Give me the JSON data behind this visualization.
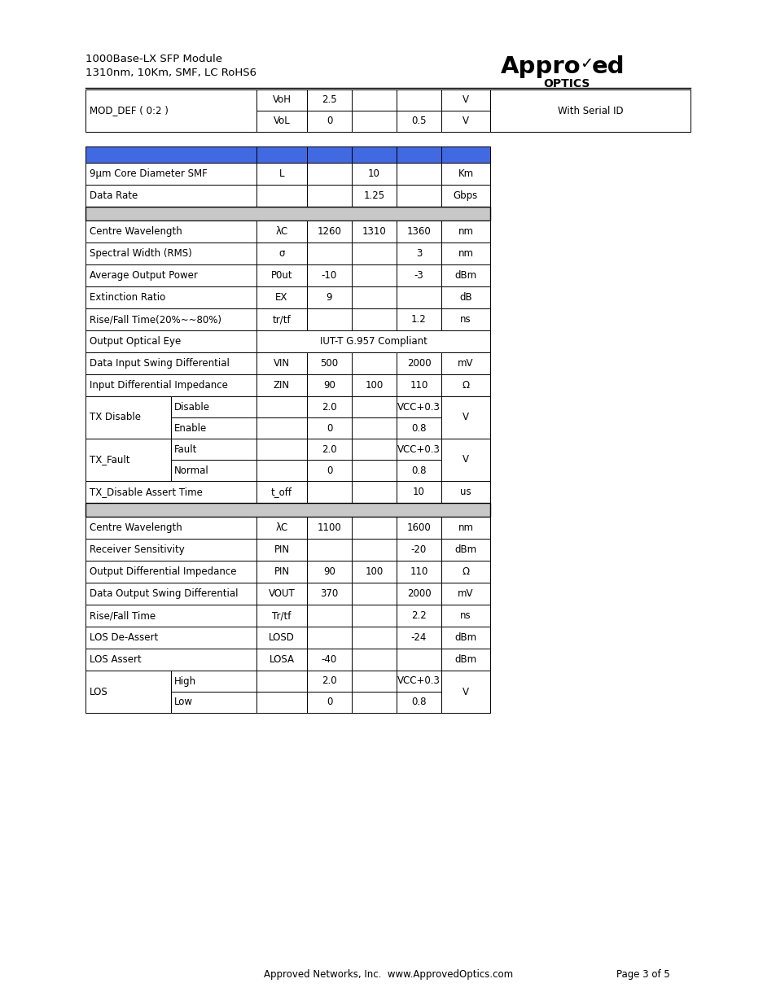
{
  "title_line1": "1000Base-LX SFP Module",
  "title_line2": "1310nm, 10Km, SMF, LC RoHS6",
  "footer": "Approved Networks, Inc.  www.ApprovedOptics.com",
  "footer_right": "Page 3 of 5",
  "blue_color": "#4169E1",
  "gray_color": "#C8C8C8",
  "bg_color": "#FFFFFF",
  "top_table": {
    "rows": [
      [
        "MOD_DEF ( 0:2 )",
        "VoH",
        "2.5",
        "",
        "",
        "V",
        "With Serial ID"
      ],
      [
        "",
        "VoL",
        "0",
        "",
        "0.5",
        "V",
        ""
      ]
    ]
  },
  "main_rows": [
    {
      "type": "blue_header"
    },
    {
      "type": "data",
      "cells": [
        "9μm Core Diameter SMF",
        "L",
        "",
        "10",
        "",
        "Km"
      ]
    },
    {
      "type": "data",
      "cells": [
        "Data Rate",
        "",
        "",
        "1.25",
        "",
        "Gbps"
      ]
    },
    {
      "type": "gray_sep"
    },
    {
      "type": "data",
      "cells": [
        "Centre Wavelength",
        "λC",
        "1260",
        "1310",
        "1360",
        "nm"
      ]
    },
    {
      "type": "data",
      "cells": [
        "Spectral Width (RMS)",
        "σ",
        "",
        "",
        "3",
        "nm"
      ]
    },
    {
      "type": "data",
      "cells": [
        "Average Output Power",
        "P0ut",
        "-10",
        "",
        "-3",
        "dBm"
      ]
    },
    {
      "type": "data",
      "cells": [
        "Extinction Ratio",
        "EX",
        "9",
        "",
        "",
        "dB"
      ]
    },
    {
      "type": "data",
      "cells": [
        "Rise/Fall Time(20%~~80%)",
        "tr/tf",
        "",
        "",
        "1.2",
        "ns"
      ]
    },
    {
      "type": "span",
      "label": "Output Optical Eye",
      "span_text": "IUT-T G.957 Compliant"
    },
    {
      "type": "data",
      "cells": [
        "Data Input Swing Differential",
        "VIN",
        "500",
        "",
        "2000",
        "mV"
      ]
    },
    {
      "type": "data",
      "cells": [
        "Input Differential Impedance",
        "ZIN",
        "90",
        "100",
        "110",
        "Ω"
      ]
    },
    {
      "type": "merged",
      "label": "TX Disable",
      "sub_rows": [
        [
          "Disable",
          "2.0",
          "VCC+0.3"
        ],
        [
          "Enable",
          "0",
          "0.8"
        ]
      ],
      "unit": "V"
    },
    {
      "type": "merged",
      "label": "TX_Fault",
      "sub_rows": [
        [
          "Fault",
          "2.0",
          "VCC+0.3"
        ],
        [
          "Normal",
          "0",
          "0.8"
        ]
      ],
      "unit": "V"
    },
    {
      "type": "data",
      "cells": [
        "TX_Disable Assert Time",
        "t_off",
        "",
        "",
        "10",
        "us"
      ]
    },
    {
      "type": "gray_sep"
    },
    {
      "type": "data",
      "cells": [
        "Centre Wavelength",
        "λC",
        "1100",
        "",
        "1600",
        "nm"
      ]
    },
    {
      "type": "data",
      "cells": [
        "Receiver Sensitivity",
        "PIN",
        "",
        "",
        "-20",
        "dBm"
      ]
    },
    {
      "type": "data",
      "cells": [
        "Output Differential Impedance",
        "PIN",
        "90",
        "100",
        "110",
        "Ω"
      ]
    },
    {
      "type": "data",
      "cells": [
        "Data Output Swing Differential",
        "VOUT",
        "370",
        "",
        "2000",
        "mV"
      ]
    },
    {
      "type": "data",
      "cells": [
        "Rise/Fall Time",
        "Tr/tf",
        "",
        "",
        "2.2",
        "ns"
      ]
    },
    {
      "type": "data",
      "cells": [
        "LOS De-Assert",
        "LOSD",
        "",
        "",
        "-24",
        "dBm"
      ]
    },
    {
      "type": "data",
      "cells": [
        "LOS Assert",
        "LOSA",
        "-40",
        "",
        "",
        "dBm"
      ]
    },
    {
      "type": "merged",
      "label": "LOS",
      "sub_rows": [
        [
          "High",
          "2.0",
          "VCC+0.3"
        ],
        [
          "Low",
          "0",
          "0.8"
        ]
      ],
      "unit": "V"
    }
  ]
}
